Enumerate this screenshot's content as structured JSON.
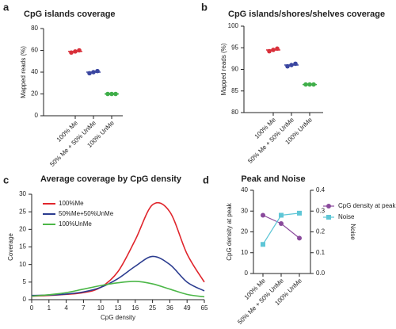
{
  "chart_data": [
    {
      "type": "dot",
      "panel": "a",
      "title": "CpG islands coverage",
      "ylabel": "Mapped reads (%)",
      "categories": [
        "100% Me",
        "50% Me + 50% UnMe",
        "100% UnMe"
      ],
      "values": [
        59,
        40,
        20
      ],
      "replicates": [
        [
          58,
          59,
          60
        ],
        [
          39,
          40,
          41
        ],
        [
          20,
          20,
          20
        ]
      ],
      "colors": [
        "#d9303a",
        "#3a46a0",
        "#3fae49"
      ],
      "ylim": [
        0,
        80
      ],
      "yticks": [
        0,
        20,
        40,
        60,
        80
      ]
    },
    {
      "type": "dot",
      "panel": "b",
      "title": "CpG islands/shores/shelves coverage",
      "ylabel": "Mapped reads (%)",
      "categories": [
        "100% Me",
        "50% Me + 50% UnMe",
        "100% UnMe"
      ],
      "values": [
        94.5,
        91,
        86.5
      ],
      "replicates": [
        [
          94.2,
          94.5,
          94.8
        ],
        [
          90.7,
          91,
          91.3
        ],
        [
          86.5,
          86.5,
          86.5
        ]
      ],
      "colors": [
        "#d9303a",
        "#3a46a0",
        "#3fae49"
      ],
      "ylim": [
        80,
        100
      ],
      "yticks": [
        80,
        85,
        90,
        95,
        100
      ]
    },
    {
      "type": "line",
      "panel": "c",
      "title": "Average coverage by CpG density",
      "xlabel": "CpG density",
      "ylabel": "Coverage",
      "categories": [
        "0",
        "1",
        "4",
        "7",
        "10",
        "13",
        "16",
        "25",
        "36",
        "49",
        "65"
      ],
      "series": [
        {
          "name": "100%Me",
          "color": "#e0262d",
          "values": [
            1,
            1.2,
            1.5,
            2,
            3.5,
            8,
            17,
            27,
            25,
            13,
            5
          ]
        },
        {
          "name": "50%Me+50%UnMe",
          "color": "#2b3c8f",
          "values": [
            1.2,
            1.3,
            1.6,
            2.2,
            3.5,
            6,
            9.5,
            12.3,
            10,
            5,
            2.5
          ]
        },
        {
          "name": "100%UnMe",
          "color": "#4cb748",
          "values": [
            1,
            1.4,
            2,
            3,
            4,
            4.8,
            5.2,
            4.5,
            3,
            1.5,
            0.8
          ]
        }
      ],
      "ylim": [
        0,
        30
      ],
      "yticks": [
        0,
        5,
        10,
        15,
        20,
        25,
        30
      ],
      "legend": "top-left"
    },
    {
      "type": "dual",
      "panel": "d",
      "title": "Peak and Noise",
      "ylabel": "CpG density at peak",
      "y2label": "Noise",
      "categories": [
        "100% Me",
        "50% Me + 50% UnMe",
        "100% UnMe"
      ],
      "series": [
        {
          "name": "CpG density at peak",
          "color": "#8a4a9c",
          "marker": "circle",
          "values": [
            28,
            24,
            17
          ]
        },
        {
          "name": "Noise",
          "color": "#5ec6d6",
          "marker": "square",
          "axis": "y2",
          "values": [
            0.14,
            0.28,
            0.29
          ]
        }
      ],
      "ylim": [
        0,
        40
      ],
      "yticks": [
        0,
        10,
        20,
        30,
        40
      ],
      "y2lim": [
        0,
        0.4
      ],
      "y2ticks": [
        {
          "value": 0,
          "label": "0.0"
        },
        0.1,
        0.2,
        0.3,
        0.4
      ],
      "legend": "right"
    }
  ]
}
